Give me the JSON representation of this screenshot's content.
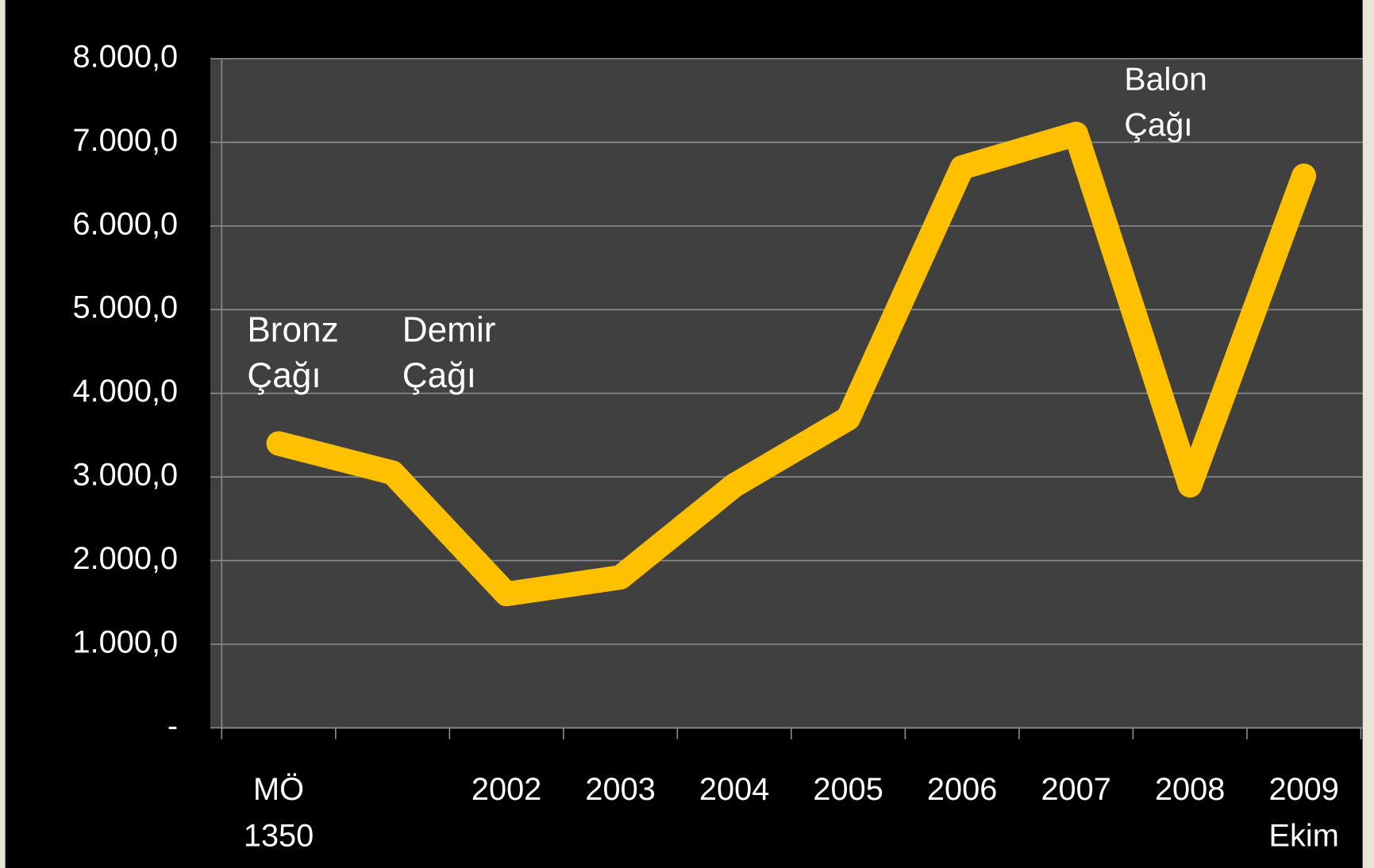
{
  "chart_data": {
    "type": "line",
    "categories": [
      "MÖ 1350",
      null,
      "2002",
      "2003",
      "2004",
      "2005",
      "2006",
      "2007",
      "2008",
      "2009 Ekim"
    ],
    "values": [
      3400,
      3050,
      1600,
      1800,
      2900,
      3700,
      6700,
      7100,
      2900,
      6600
    ],
    "color": "#ffc000",
    "ylim": [
      0,
      8000
    ],
    "yticks": [
      {
        "value": 0,
        "label": "-"
      },
      {
        "value": 1000,
        "label": "1.000,0"
      },
      {
        "value": 2000,
        "label": "2.000,0"
      },
      {
        "value": 3000,
        "label": "3.000,0"
      },
      {
        "value": 4000,
        "label": "4.000,0"
      },
      {
        "value": 5000,
        "label": "5.000,0"
      },
      {
        "value": 6000,
        "label": "6.000,0"
      },
      {
        "value": 7000,
        "label": "7.000,0"
      },
      {
        "value": 8000,
        "label": "8.000,0"
      }
    ],
    "grid": true,
    "annotations": [
      "Bronz Çağı",
      "Demir Çağı",
      "Balon Çağı"
    ]
  }
}
